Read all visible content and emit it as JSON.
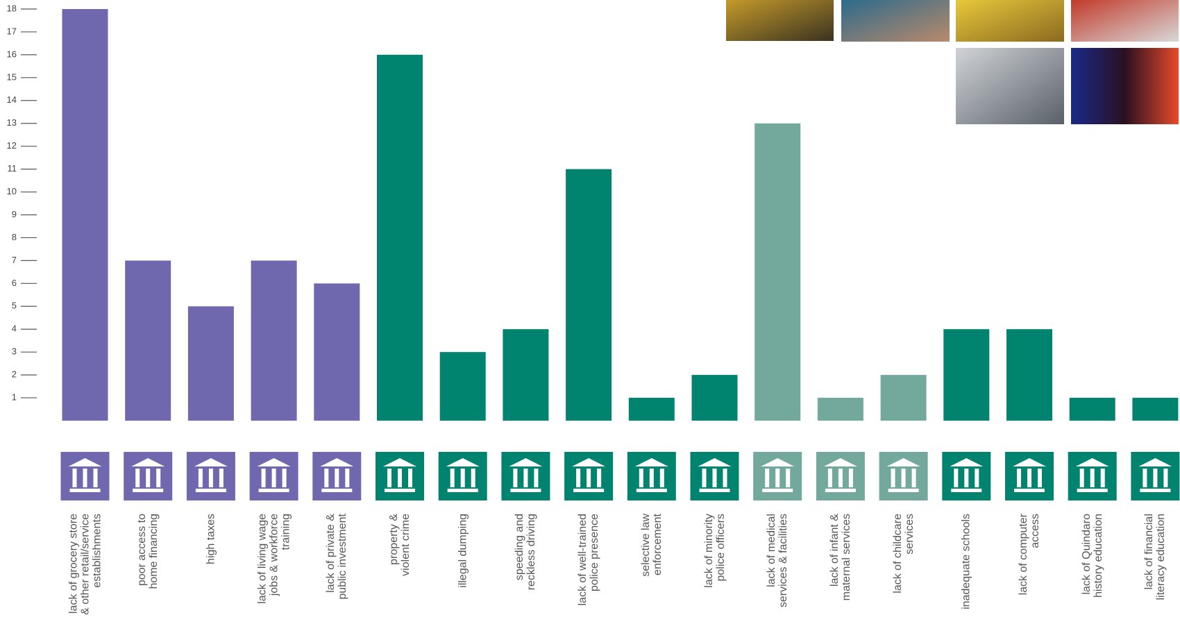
{
  "chart_data": {
    "type": "bar",
    "categories": [
      "lack of grocery store\n& other retail/service\nestablishments",
      "poor access to\nhome financing",
      "high taxes",
      "lack of living wage\njobs & workforce\ntraining",
      "lack of private &\npublic investment",
      "property &\nviolent crime",
      "illegal dumping",
      "speeding and\nreckless driving",
      "lack of well-trained\npolice presence",
      "selective law\nenforcement",
      "lack of minority\npolice officers",
      "lack of medical\nservices & facilities",
      "lack of infant &\nmaternal services",
      "lack of childcare\nservices",
      "inadequate schools",
      "lack of computer\naccess",
      "lack of Quindaro\nhistory education",
      "lack of financial\nliteracy education"
    ],
    "values": [
      18,
      7,
      5,
      7,
      6,
      16,
      3,
      4,
      11,
      1,
      2,
      13,
      1,
      2,
      4,
      4,
      1,
      1
    ],
    "colors": [
      "#7068ae",
      "#7068ae",
      "#7068ae",
      "#7068ae",
      "#7068ae",
      "#00846f",
      "#00846f",
      "#00846f",
      "#00846f",
      "#00846f",
      "#00846f",
      "#73a89d",
      "#73a89d",
      "#73a89d",
      "#00846f",
      "#00846f",
      "#00846f",
      "#00846f"
    ],
    "ylim": [
      0,
      18
    ],
    "yticks": [
      1,
      2,
      3,
      4,
      5,
      6,
      7,
      8,
      9,
      10,
      11,
      12,
      13,
      14,
      15,
      16,
      17,
      18
    ]
  }
}
